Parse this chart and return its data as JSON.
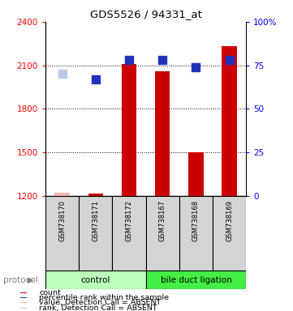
{
  "title": "GDS5526 / 94331_at",
  "samples": [
    "GSM738170",
    "GSM738171",
    "GSM738172",
    "GSM738167",
    "GSM738168",
    "GSM738169"
  ],
  "bar_values": [
    1220,
    1215,
    2110,
    2060,
    1500,
    2230
  ],
  "bar_absent": [
    true,
    false,
    false,
    false,
    false,
    false
  ],
  "rank_values_pct": [
    70,
    67,
    78,
    78,
    74,
    78
  ],
  "rank_absent": [
    true,
    false,
    false,
    false,
    false,
    false
  ],
  "ylim_left": [
    1200,
    2400
  ],
  "ylim_right": [
    0,
    100
  ],
  "yticks_left": [
    1200,
    1500,
    1800,
    2100,
    2400
  ],
  "ytick_labels_left": [
    "1200",
    "1500",
    "1800",
    "2100",
    "2400"
  ],
  "yticks_right": [
    0,
    25,
    50,
    75,
    100
  ],
  "ytick_labels_right": [
    "0",
    "25",
    "50",
    "75",
    "100%"
  ],
  "color_bar_present": "#cc0000",
  "color_bar_absent": "#ffb3b3",
  "color_rank_present": "#2233bb",
  "color_rank_absent": "#b8c8e8",
  "color_sample_box": "#d0d0d0",
  "color_ctrl_bg": "#bbffbb",
  "color_bdl_bg": "#44ee44",
  "legend_items": [
    {
      "color": "#cc0000",
      "label": "count"
    },
    {
      "color": "#2233bb",
      "label": "percentile rank within the sample"
    },
    {
      "color": "#ffb3b3",
      "label": "value, Detection Call = ABSENT"
    },
    {
      "color": "#b8c8e8",
      "label": "rank, Detection Call = ABSENT"
    }
  ],
  "bar_width": 0.45,
  "rank_dot_size": 55
}
